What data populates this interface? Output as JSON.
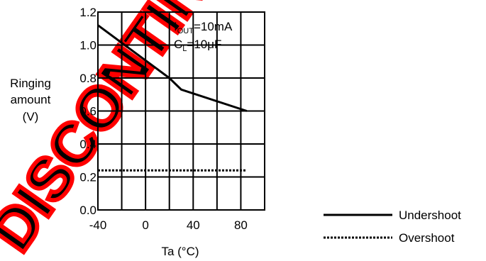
{
  "watermark": "DISCONTINUED PRODUCT",
  "chart_data": {
    "type": "line",
    "xlabel": "Ta (°C)",
    "ylabel_lines": [
      "Ringing",
      "amount",
      "(V)"
    ],
    "xlim": [
      -40,
      100
    ],
    "ylim": [
      0,
      1.2
    ],
    "x_ticks": [
      -40,
      0,
      40,
      80
    ],
    "x_tick_labels": [
      "-40",
      "0",
      "40",
      "80"
    ],
    "y_ticks": [
      0,
      0.2,
      0.4,
      0.6,
      0.8,
      1.0,
      1.2
    ],
    "y_tick_labels": [
      "0.0",
      "0.2",
      "0.4",
      "0.6",
      "0.8",
      "1.0",
      "1.2"
    ],
    "grid": true,
    "annotations": {
      "iout": {
        "prefix": "I",
        "sub": "OUT",
        "suffix": "=10mA"
      },
      "cl": {
        "prefix": "C",
        "sub": "L",
        "suffix": "=10μF"
      }
    },
    "series": [
      {
        "name": "Undershoot",
        "style": "solid",
        "x": [
          -40,
          20,
          30,
          85
        ],
        "y": [
          1.12,
          0.8,
          0.73,
          0.6
        ]
      },
      {
        "name": "Overshoot",
        "style": "dotted",
        "x": [
          -40,
          85
        ],
        "y": [
          0.24,
          0.24
        ]
      }
    ],
    "legend_position": "bottom-right"
  },
  "colors": {
    "line": "#000000",
    "watermark": "#ff0000",
    "grid": "#000000"
  }
}
